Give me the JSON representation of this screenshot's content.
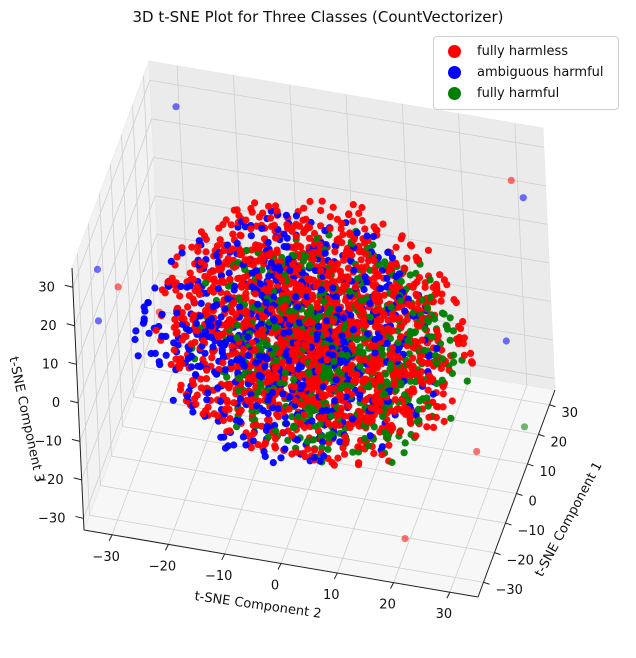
{
  "chart_data": {
    "type": "scatter",
    "title": "3D t-SNE Plot for Three Classes (CountVectorizer)",
    "xlabel": "t-SNE Component 1",
    "ylabel": "t-SNE Component 2",
    "zlabel": "t-SNE Component 3",
    "xlim": [
      -35,
      35
    ],
    "ylim": [
      -35,
      35
    ],
    "zlim": [
      -33,
      35
    ],
    "xticks": [
      -30,
      -20,
      -10,
      0,
      10,
      20,
      30
    ],
    "yticks": [
      -30,
      -20,
      -10,
      0,
      10,
      20,
      30
    ],
    "zticks": [
      -30,
      -20,
      -10,
      0,
      10,
      20,
      30
    ],
    "grid": true,
    "legend_position": "top-right",
    "series": [
      {
        "name": "fully harmless",
        "color": "#ff0000",
        "distribution": "dense sphere of points, radius ~28, centered at origin",
        "outliers": [
          [
            -30,
            -28,
            28
          ],
          [
            30,
            30,
            24
          ],
          [
            25,
            -33,
            -22
          ],
          [
            -24,
            20,
            -30
          ],
          [
            10,
            26,
            -32
          ]
        ]
      },
      {
        "name": "ambiguous harmful",
        "color": "#0000ff",
        "distribution": "dense sphere of points, radius ~28, centered at origin",
        "outliers": [
          [
            -28,
            -32,
            30
          ],
          [
            30,
            32,
            20
          ],
          [
            28,
            -29,
            30
          ],
          [
            -20,
            -34,
            10
          ],
          [
            20,
            30,
            -10
          ]
        ]
      },
      {
        "name": "fully harmful",
        "color": "#008000",
        "distribution": "dense sphere of points, radius ~26, centered at origin",
        "outliers": [
          [
            18,
            33,
            -30
          ]
        ]
      }
    ]
  }
}
